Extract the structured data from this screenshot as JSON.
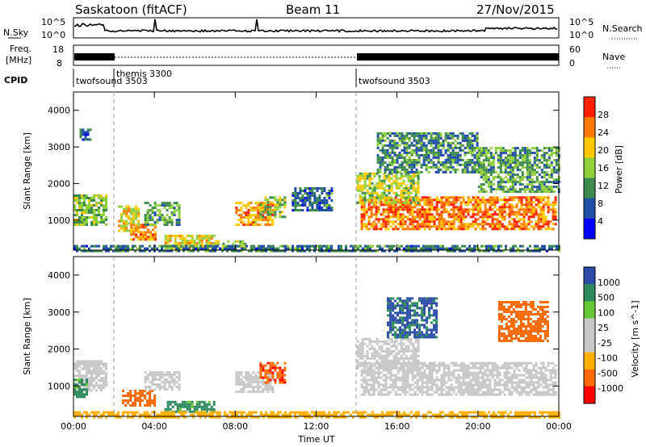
{
  "header": {
    "radar": "Saskatoon (fitACF)",
    "beam": "Beam 11",
    "date": "27/Nov/2015"
  },
  "noise_panel": {
    "left_label": "N.Sky",
    "right_label": "N.Search",
    "left_ticks": [
      "10^5",
      "10^0"
    ],
    "right_ticks": [
      "10^5",
      "10^0"
    ]
  },
  "freq_panel": {
    "left_label_1": "Freq.",
    "left_label_2": "[MHz]",
    "left_ticks": [
      "18",
      "8"
    ],
    "right_ticks": [
      "60",
      "0"
    ],
    "right_label": "Nave"
  },
  "cpid_panel": {
    "label": "CPID",
    "modes": [
      {
        "name": "twofsound 3503",
        "start_hour": 0
      },
      {
        "name": "themis 3300",
        "start_hour": 2
      },
      {
        "name": "twofsound 3503",
        "start_hour": 14
      }
    ]
  },
  "colors": {
    "power_scale": [
      "#0000ff",
      "#1f4ea8",
      "#3d8a4e",
      "#8fcf3c",
      "#ffc800",
      "#ff7a00",
      "#ff2000"
    ],
    "velocity_scale": [
      "#ff0000",
      "#ff6a00",
      "#ffb000",
      "#c8c8c8",
      "#c8c8c8",
      "#66c833",
      "#2d8a5c",
      "#2b4da8"
    ]
  },
  "chart_data": [
    {
      "type": "heatmap",
      "title": "Power",
      "ylabel": "Slant Range [km]",
      "xlabel": "",
      "x_ticks": [
        "00:00",
        "04:00",
        "08:00",
        "12:00",
        "16:00",
        "20:00",
        "00:00"
      ],
      "xlim_hours": [
        0,
        24
      ],
      "ylim_km": [
        180,
        4500
      ],
      "y_ticks": [
        1000,
        2000,
        3000,
        4000
      ],
      "colorbar": {
        "label": "Power [dB]",
        "ticks": [
          "4",
          "8",
          "12",
          "16",
          "20",
          "24",
          "28"
        ],
        "range": [
          0,
          30
        ]
      },
      "regions": [
        {
          "t0": 0.0,
          "t1": 1.6,
          "r0": 850,
          "r1": 1700,
          "value": 14
        },
        {
          "t0": 0.3,
          "t1": 0.8,
          "r0": 3200,
          "r1": 3500,
          "value": 8
        },
        {
          "t0": 2.2,
          "t1": 3.2,
          "r0": 700,
          "r1": 1400,
          "value": 18
        },
        {
          "t0": 2.8,
          "t1": 4.0,
          "r0": 450,
          "r1": 900,
          "value": 22
        },
        {
          "t0": 3.5,
          "t1": 5.2,
          "r0": 900,
          "r1": 1500,
          "value": 12
        },
        {
          "t0": 4.5,
          "t1": 7.0,
          "r0": 250,
          "r1": 600,
          "value": 18
        },
        {
          "t0": 7.0,
          "t1": 8.5,
          "r0": 200,
          "r1": 450,
          "value": 15
        },
        {
          "t0": 8.0,
          "t1": 9.8,
          "r0": 850,
          "r1": 1500,
          "value": 22
        },
        {
          "t0": 9.2,
          "t1": 10.4,
          "r0": 1100,
          "r1": 1650,
          "value": 14
        },
        {
          "t0": 10.8,
          "t1": 12.8,
          "r0": 1300,
          "r1": 1900,
          "value": 8
        },
        {
          "t0": 14.2,
          "t1": 23.8,
          "r0": 750,
          "r1": 1650,
          "value": 24
        },
        {
          "t0": 14.0,
          "t1": 17.0,
          "r0": 1500,
          "r1": 2300,
          "value": 16
        },
        {
          "t0": 15.0,
          "t1": 20.0,
          "r0": 2300,
          "r1": 3400,
          "value": 10
        },
        {
          "t0": 20.0,
          "t1": 24.0,
          "r0": 1800,
          "r1": 3000,
          "value": 12
        },
        {
          "t0": 0.0,
          "t1": 24.0,
          "r0": 180,
          "r1": 320,
          "value": 9
        }
      ]
    },
    {
      "type": "heatmap",
      "title": "Velocity",
      "ylabel": "Slant Range [km]",
      "xlabel": "Time UT",
      "x_ticks": [
        "00:00",
        "04:00",
        "08:00",
        "12:00",
        "16:00",
        "20:00",
        "00:00"
      ],
      "xlim_hours": [
        0,
        24
      ],
      "ylim_km": [
        180,
        4500
      ],
      "y_ticks": [
        1000,
        2000,
        3000,
        4000
      ],
      "colorbar": {
        "label": "Velocity [m s^-1]",
        "ticks": [
          "1000",
          "500",
          "100",
          "25",
          "-25",
          "-100",
          "-500",
          "-1000"
        ],
        "range": [
          -1000,
          1000
        ]
      },
      "regions": [
        {
          "t0": 0.0,
          "t1": 1.6,
          "r0": 850,
          "r1": 1700,
          "value": 0
        },
        {
          "t0": 0.0,
          "t1": 0.6,
          "r0": 700,
          "r1": 1200,
          "value": 150
        },
        {
          "t0": 2.4,
          "t1": 4.0,
          "r0": 450,
          "r1": 900,
          "value": -300
        },
        {
          "t0": 3.5,
          "t1": 5.2,
          "r0": 900,
          "r1": 1400,
          "value": 0
        },
        {
          "t0": 4.5,
          "t1": 7.0,
          "r0": 300,
          "r1": 600,
          "value": 150
        },
        {
          "t0": 8.0,
          "t1": 9.8,
          "r0": 850,
          "r1": 1400,
          "value": 0
        },
        {
          "t0": 9.2,
          "t1": 10.4,
          "r0": 1100,
          "r1": 1650,
          "value": -400
        },
        {
          "t0": 14.2,
          "t1": 23.8,
          "r0": 750,
          "r1": 1650,
          "value": 0
        },
        {
          "t0": 14.0,
          "t1": 17.0,
          "r0": 1500,
          "r1": 2300,
          "value": 0
        },
        {
          "t0": 15.5,
          "t1": 18.0,
          "r0": 2300,
          "r1": 3400,
          "value": 600
        },
        {
          "t0": 21.0,
          "t1": 23.5,
          "r0": 2200,
          "r1": 3300,
          "value": -300
        },
        {
          "t0": 0.0,
          "t1": 24.0,
          "r0": 180,
          "r1": 320,
          "value": -60
        }
      ]
    }
  ]
}
